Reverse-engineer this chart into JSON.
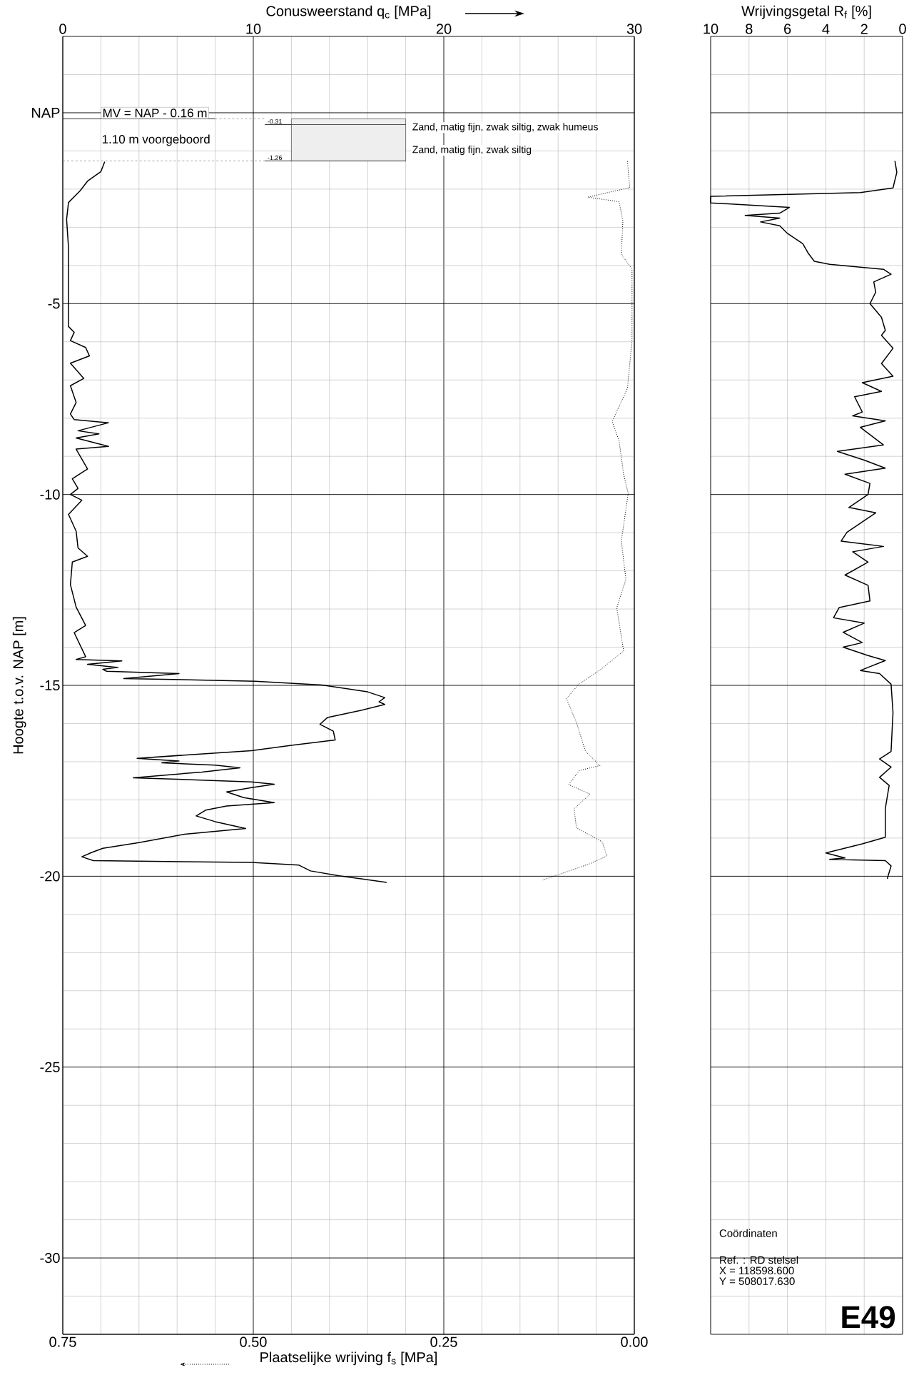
{
  "chart_data": [
    {
      "type": "line",
      "xlabel": "Conusweerstand q$_{c}$ [MPa]",
      "x2label": "Plaatselijke wrijving f$_{s}$ [MPa]",
      "ylabel": "Hoogte t.o.v. NAP [m]",
      "xlim": [
        0,
        30
      ],
      "xticks": [
        0,
        {
          "value": 2,
          "label": null
        },
        {
          "value": 4,
          "label": null
        },
        {
          "value": 6,
          "label": null
        },
        {
          "value": 8,
          "label": null
        },
        10,
        {
          "value": 12,
          "label": null
        },
        {
          "value": 14,
          "label": null
        },
        {
          "value": 16,
          "label": null
        },
        {
          "value": 18,
          "label": null
        },
        20,
        {
          "value": 22,
          "label": null
        },
        {
          "value": 24,
          "label": null
        },
        {
          "value": 26,
          "label": null
        },
        {
          "value": 28,
          "label": null
        },
        30
      ],
      "x2lim": [
        0.75,
        0
      ],
      "x2ticks": [
        0.75,
        {
          "value": 0.5,
          "label": "0.50"
        },
        0.25,
        {
          "value": 0,
          "label": "0.00"
        }
      ],
      "ylim": [
        -32,
        2
      ],
      "yticks": [
        {
          "value": 1,
          "label": null
        },
        {
          "value": 0,
          "label": "NAP"
        },
        {
          "value": -1,
          "label": null
        },
        {
          "value": -2,
          "label": null
        },
        {
          "value": -3,
          "label": null
        },
        {
          "value": -4,
          "label": null
        },
        -5,
        {
          "value": -6,
          "label": null
        },
        {
          "value": -7,
          "label": null
        },
        {
          "value": -8,
          "label": null
        },
        {
          "value": -9,
          "label": null
        },
        -10,
        {
          "value": -11,
          "label": null
        },
        {
          "value": -12,
          "label": null
        },
        {
          "value": -13,
          "label": null
        },
        {
          "value": -14,
          "label": null
        },
        -15,
        {
          "value": -16,
          "label": null
        },
        {
          "value": -17,
          "label": null
        },
        {
          "value": -18,
          "label": null
        },
        {
          "value": -19,
          "label": null
        },
        -20,
        {
          "value": -21,
          "label": null
        },
        {
          "value": -22,
          "label": null
        },
        {
          "value": -23,
          "label": null
        },
        {
          "value": -24,
          "label": null
        },
        -25,
        {
          "value": -26,
          "label": null
        },
        {
          "value": -27,
          "label": null
        },
        {
          "value": -28,
          "label": null
        },
        {
          "value": -29,
          "label": null
        },
        -30,
        {
          "value": -31,
          "label": null
        }
      ],
      "grid": true,
      "series": [
        {
          "color": "#000000",
          "line_style": "solid",
          "x": [
            2.2,
            2.0,
            1.3,
            0.9,
            0.3,
            0.2,
            0.3,
            0.3,
            0.6,
            0.4,
            1.2,
            1.4,
            0.4,
            1.1,
            0.4,
            0.7,
            0.4,
            0.6,
            2.4,
            0.8,
            1.9,
            0.7,
            2.4,
            0.7,
            1.3,
            0.5,
            0.8,
            0.4,
            1.0,
            0.3,
            0.7,
            0.8,
            1.3,
            0.5,
            0.4,
            0.7,
            1.2,
            0.6,
            1.2,
            0.7,
            3.1,
            1.3,
            2.9,
            2.1,
            2.3,
            6.1,
            3.2,
            10.1,
            13.6,
            16.0,
            16.9,
            16.6,
            16.9,
            15.7,
            13.9,
            13.5,
            14.2,
            14.3,
            12.0,
            9.9,
            3.9,
            6.1,
            5.2,
            8.0,
            9.3,
            7.3,
            3.7,
            9.9,
            11.1,
            9.9,
            8.6,
            9.5,
            11.1,
            8.6,
            7.5,
            7.0,
            8.0,
            9.6,
            6.4,
            4.0,
            2.1,
            1.5,
            1.0,
            1.6,
            9.9,
            12.4,
            13.0,
            14.5,
            17.0
          ],
          "values": [
            -1.28,
            -1.54,
            -1.79,
            -2.05,
            -2.35,
            -2.79,
            -3.53,
            -5.6,
            -5.75,
            -5.97,
            -6.15,
            -6.37,
            -6.56,
            -6.96,
            -7.15,
            -7.59,
            -7.89,
            -8.04,
            -8.12,
            -8.33,
            -8.41,
            -8.52,
            -8.74,
            -8.81,
            -9.33,
            -9.59,
            -9.84,
            -10.0,
            -10.15,
            -10.52,
            -10.96,
            -11.4,
            -11.62,
            -11.77,
            -12.36,
            -12.95,
            -13.43,
            -13.62,
            -14.25,
            -14.32,
            -14.36,
            -14.45,
            -14.53,
            -14.58,
            -14.63,
            -14.69,
            -14.82,
            -14.89,
            -14.99,
            -15.17,
            -15.32,
            -15.43,
            -15.5,
            -15.65,
            -15.84,
            -16.02,
            -16.2,
            -16.43,
            -16.57,
            -16.71,
            -16.91,
            -16.98,
            -17.03,
            -17.09,
            -17.16,
            -17.27,
            -17.42,
            -17.53,
            -17.59,
            -17.68,
            -17.79,
            -17.94,
            -18.07,
            -18.16,
            -18.27,
            -18.42,
            -18.57,
            -18.75,
            -18.9,
            -19.12,
            -19.27,
            -19.38,
            -19.49,
            -19.59,
            -19.64,
            -19.71,
            -19.86,
            -19.99,
            -20.16
          ]
        },
        {
          "color": "#000000",
          "line_style": "dotted",
          "axis": "x2",
          "x": [
            0.009,
            0.006,
            0.061,
            0.02,
            0.015,
            0.017,
            0.003,
            0.003,
            0.009,
            0.029,
            0.02,
            0.014,
            0.008,
            0.017,
            0.011,
            0.023,
            0.014,
            0.045,
            0.073,
            0.089,
            0.076,
            0.064,
            0.045,
            0.072,
            0.086,
            0.058,
            0.079,
            0.076,
            0.042,
            0.036,
            0.058,
            0.12
          ],
          "values": [
            -1.27,
            -1.96,
            -2.21,
            -2.33,
            -2.83,
            -3.71,
            -4.09,
            -5.96,
            -7.22,
            -8.09,
            -8.59,
            -9.47,
            -9.97,
            -11.22,
            -12.22,
            -12.97,
            -14.1,
            -14.6,
            -14.97,
            -15.35,
            -15.97,
            -16.73,
            -17.1,
            -17.23,
            -17.6,
            -17.85,
            -18.23,
            -18.73,
            -19.1,
            -19.47,
            -19.67,
            -20.1
          ]
        }
      ],
      "ref_lines": [
        {
          "axis": "y",
          "value": -0.16,
          "label": "MV = NAP - 0.16 m"
        },
        {
          "axis": "y",
          "value": -0.31,
          "label": "-0.31"
        },
        {
          "axis": "y",
          "value": -1.26,
          "label": "-1.26"
        }
      ],
      "bands": [
        {
          "axis": "y",
          "from": -0.16,
          "to": -0.31,
          "label": "Zand, matig fijn, zwak siltig, zwak humeus",
          "color": "#eeeeee"
        },
        {
          "axis": "y",
          "from": -0.31,
          "to": -1.26,
          "label": "Zand, matig fijn, zwak siltig",
          "color": "#eeeeee"
        }
      ],
      "annotations": [
        "1.10 m  voorgeboord"
      ]
    },
    {
      "type": "line",
      "xlabel": "Wrijvingsgetal R$_{f}$ [%]",
      "xlim": [
        10,
        0
      ],
      "xticks": [
        10,
        8,
        6,
        4,
        2,
        0
      ],
      "ylim": [
        -32,
        2
      ],
      "yticks": [
        {
          "value": 1,
          "label": null
        },
        0,
        {
          "value": -1,
          "label": null
        },
        {
          "value": -2,
          "label": null
        },
        {
          "value": -3,
          "label": null
        },
        {
          "value": -4,
          "label": null
        },
        -5,
        {
          "value": -6,
          "label": null
        },
        {
          "value": -7,
          "label": null
        },
        {
          "value": -8,
          "label": null
        },
        {
          "value": -9,
          "label": null
        },
        -10,
        {
          "value": -11,
          "label": null
        },
        {
          "value": -12,
          "label": null
        },
        {
          "value": -13,
          "label": null
        },
        {
          "value": -14,
          "label": null
        },
        -15,
        {
          "value": -16,
          "label": null
        },
        {
          "value": -17,
          "label": null
        },
        {
          "value": -18,
          "label": null
        },
        {
          "value": -19,
          "label": null
        },
        -20,
        {
          "value": -21,
          "label": null
        },
        {
          "value": -22,
          "label": null
        },
        {
          "value": -23,
          "label": null
        },
        {
          "value": -24,
          "label": null
        },
        -25,
        {
          "value": -26,
          "label": null
        },
        {
          "value": -27,
          "label": null
        },
        {
          "value": -28,
          "label": null
        },
        {
          "value": -29,
          "label": null
        },
        -30,
        {
          "value": -31,
          "label": null
        }
      ],
      "tick_labels": "x",
      "grid": true,
      "series": [
        {
          "color": "#000000",
          "line_style": "solid",
          "x": [
            0.4,
            0.3,
            0.5,
            2.2,
            10.0,
            10.0,
            5.9,
            6.4,
            8.2,
            6.4,
            7.4,
            6.4,
            6.0,
            5.2,
            4.9,
            4.6,
            3.8,
            1.0,
            0.6,
            1.5,
            1.4,
            1.7,
            1.1,
            0.9,
            1.1,
            0.5,
            1.1,
            0.5,
            2.1,
            1.1,
            2.5,
            2.1,
            2.6,
            0.9,
            2.2,
            1.0,
            3.4,
            2.0,
            0.9,
            3.0,
            1.7,
            1.8,
            2.8,
            1.4,
            2.9,
            3.2,
            1.0,
            2.6,
            1.8,
            3.0,
            1.8,
            1.7,
            3.3,
            3.6,
            2.0,
            3.1,
            2.1,
            3.1,
            1.8,
            0.9,
            2.2,
            1.2,
            0.6,
            0.5,
            0.6,
            1.2,
            0.6,
            1.2,
            0.7,
            0.9,
            0.9,
            2.1,
            4.0,
            3.0,
            3.8,
            0.9,
            0.6,
            0.8
          ],
          "values": [
            -1.26,
            -1.56,
            -1.97,
            -2.09,
            -2.19,
            -2.36,
            -2.48,
            -2.63,
            -2.69,
            -2.76,
            -2.86,
            -2.96,
            -3.16,
            -3.43,
            -3.69,
            -3.89,
            -3.97,
            -4.1,
            -4.23,
            -4.43,
            -4.7,
            -5.0,
            -5.36,
            -5.7,
            -5.83,
            -6.17,
            -6.57,
            -6.9,
            -7.07,
            -7.3,
            -7.44,
            -7.84,
            -7.94,
            -8.07,
            -8.24,
            -8.7,
            -8.87,
            -9.1,
            -9.31,
            -9.47,
            -9.71,
            -10.0,
            -10.34,
            -10.48,
            -10.99,
            -11.22,
            -11.36,
            -11.5,
            -11.77,
            -12.11,
            -12.38,
            -12.79,
            -12.96,
            -13.23,
            -13.37,
            -13.61,
            -13.88,
            -14.0,
            -14.22,
            -14.35,
            -14.61,
            -14.69,
            -14.97,
            -15.71,
            -16.73,
            -16.93,
            -17.14,
            -17.41,
            -17.62,
            -18.23,
            -18.98,
            -19.15,
            -19.39,
            -19.52,
            -19.56,
            -19.59,
            -19.73,
            -20.07
          ]
        }
      ],
      "annotations": [
        "Coördinaten",
        "Ref. : RD stelsel",
        "X =  118598.600",
        "Y =  508017.630",
        "E49"
      ]
    }
  ]
}
